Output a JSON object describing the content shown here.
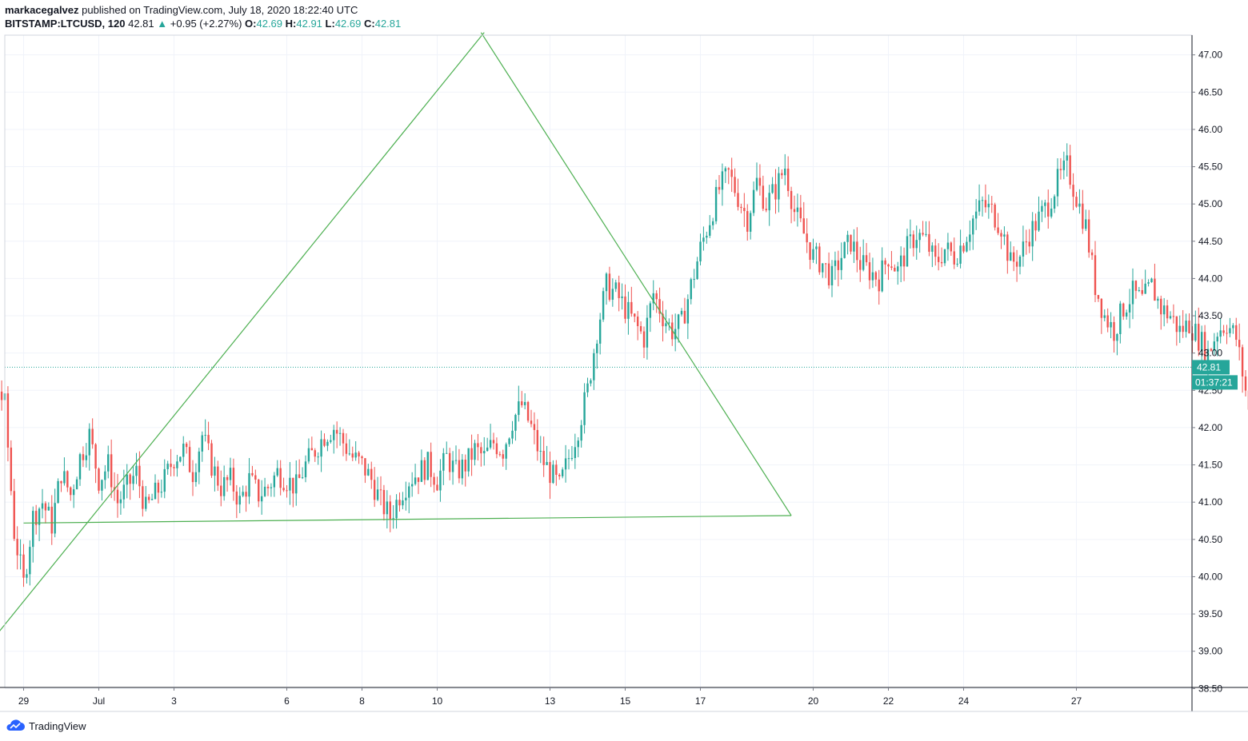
{
  "header": {
    "user": "markacegalvez",
    "publish_text": "published on TradingView.com, July 18, 2020 18:22:40 UTC",
    "symbol": "BITSTAMP:LTCUSD, 120",
    "last": "42.81",
    "arrow": "▲",
    "change": "+0.95 (+2.27%)",
    "o_label": "O:",
    "o_value": "42.69",
    "h_label": "H:",
    "h_value": "42.91",
    "l_label": "L:",
    "l_value": "42.69",
    "c_label": "C:",
    "c_value": "42.81"
  },
  "footer": {
    "brand": "TradingView",
    "logo_icon": "tradingview-cloud-icon"
  },
  "colors": {
    "up": "#26a69a",
    "down": "#ef5350",
    "trendline": "#4caf50",
    "grid": "#f0f3fa"
  },
  "chart_data": {
    "type": "candlestick",
    "ylim": [
      38.45,
      47.2
    ],
    "y_ticks": [
      "38.50",
      "39.00",
      "39.50",
      "40.00",
      "40.50",
      "41.00",
      "41.50",
      "42.00",
      "42.50",
      "43.00",
      "43.50",
      "44.00",
      "44.50",
      "45.00",
      "45.50",
      "46.00",
      "46.50",
      "47.00"
    ],
    "x_ticks": [
      "29",
      "Jul",
      "3",
      "6",
      "8",
      "10",
      "13",
      "15",
      "17",
      "20",
      "22",
      "24",
      "27"
    ],
    "last_price_label": "42.81",
    "countdown_label": "01:37:21",
    "last_price": 42.81,
    "trendlines": [
      {
        "name": "rising",
        "points": [
          [
            "Jun 28 04:00",
            39.15
          ],
          [
            "Jul 11 06:00",
            47.3
          ]
        ]
      },
      {
        "name": "falling",
        "points": [
          [
            "Jul 11 04:00",
            47.3
          ],
          [
            "Jul 19 10:00",
            40.82
          ]
        ]
      },
      {
        "name": "support",
        "points": [
          [
            "Jun 29 00:00",
            40.72
          ],
          [
            "Jul 19 10:00",
            40.82
          ]
        ]
      }
    ],
    "segments": [
      {
        "start": "Jun 26 18:00",
        "prices": [
          42.1,
          42.9,
          43.15,
          42.7,
          42.8,
          42.55,
          42.6,
          42.3,
          40.6,
          39.9,
          40.8,
          41.0,
          40.7,
          41.4,
          41.1,
          41.6,
          41.9,
          41.3,
          41.5,
          41.0,
          41.2,
          41.4,
          40.9,
          41.1,
          41.3,
          41.6,
          41.7,
          41.4,
          41.9,
          41.5,
          41.2,
          41.3,
          41.0,
          41.3,
          41.1,
          41.2,
          41.4,
          41.3,
          41.2,
          41.5,
          41.7,
          41.9,
          42.0,
          41.8,
          41.6,
          41.5,
          41.3,
          41.0,
          40.8,
          41.1,
          41.3,
          41.4,
          41.5,
          41.3,
          41.6,
          41.4,
          41.5,
          41.7,
          41.6,
          41.8,
          41.7,
          42.1,
          42.3,
          42.0,
          41.6,
          41.4,
          41.2,
          41.6,
          42.0,
          42.5,
          43.3,
          43.9,
          43.8,
          43.6,
          43.4,
          43.2,
          43.8,
          43.5,
          43.3,
          43.4,
          43.9,
          44.4,
          44.8,
          45.2,
          45.4,
          45.1,
          44.8,
          45.3,
          45.0,
          45.2,
          45.5,
          44.9,
          44.6,
          44.3,
          44.2,
          44.0,
          44.3,
          44.5,
          44.2,
          44.1,
          44.0,
          44.3,
          44.1,
          44.4,
          44.6,
          44.5,
          44.2,
          44.4,
          44.3,
          44.5,
          44.8,
          45.0,
          44.9,
          44.7,
          44.2,
          44.3,
          44.6,
          44.8,
          45.0,
          45.3,
          45.5,
          45.1,
          44.7,
          43.9,
          43.5,
          43.3,
          43.6,
          43.8,
          43.7,
          43.9,
          43.6,
          43.5,
          43.3,
          43.4,
          43.2,
          43.0,
          43.3,
          43.4,
          43.2,
          42.5,
          41.6,
          41.8,
          42.0,
          41.9,
          42.0,
          42.1,
          42.0,
          41.9,
          41.8,
          41.85,
          41.9,
          41.95,
          42.5,
          42.6,
          42.81
        ]
      }
    ]
  }
}
